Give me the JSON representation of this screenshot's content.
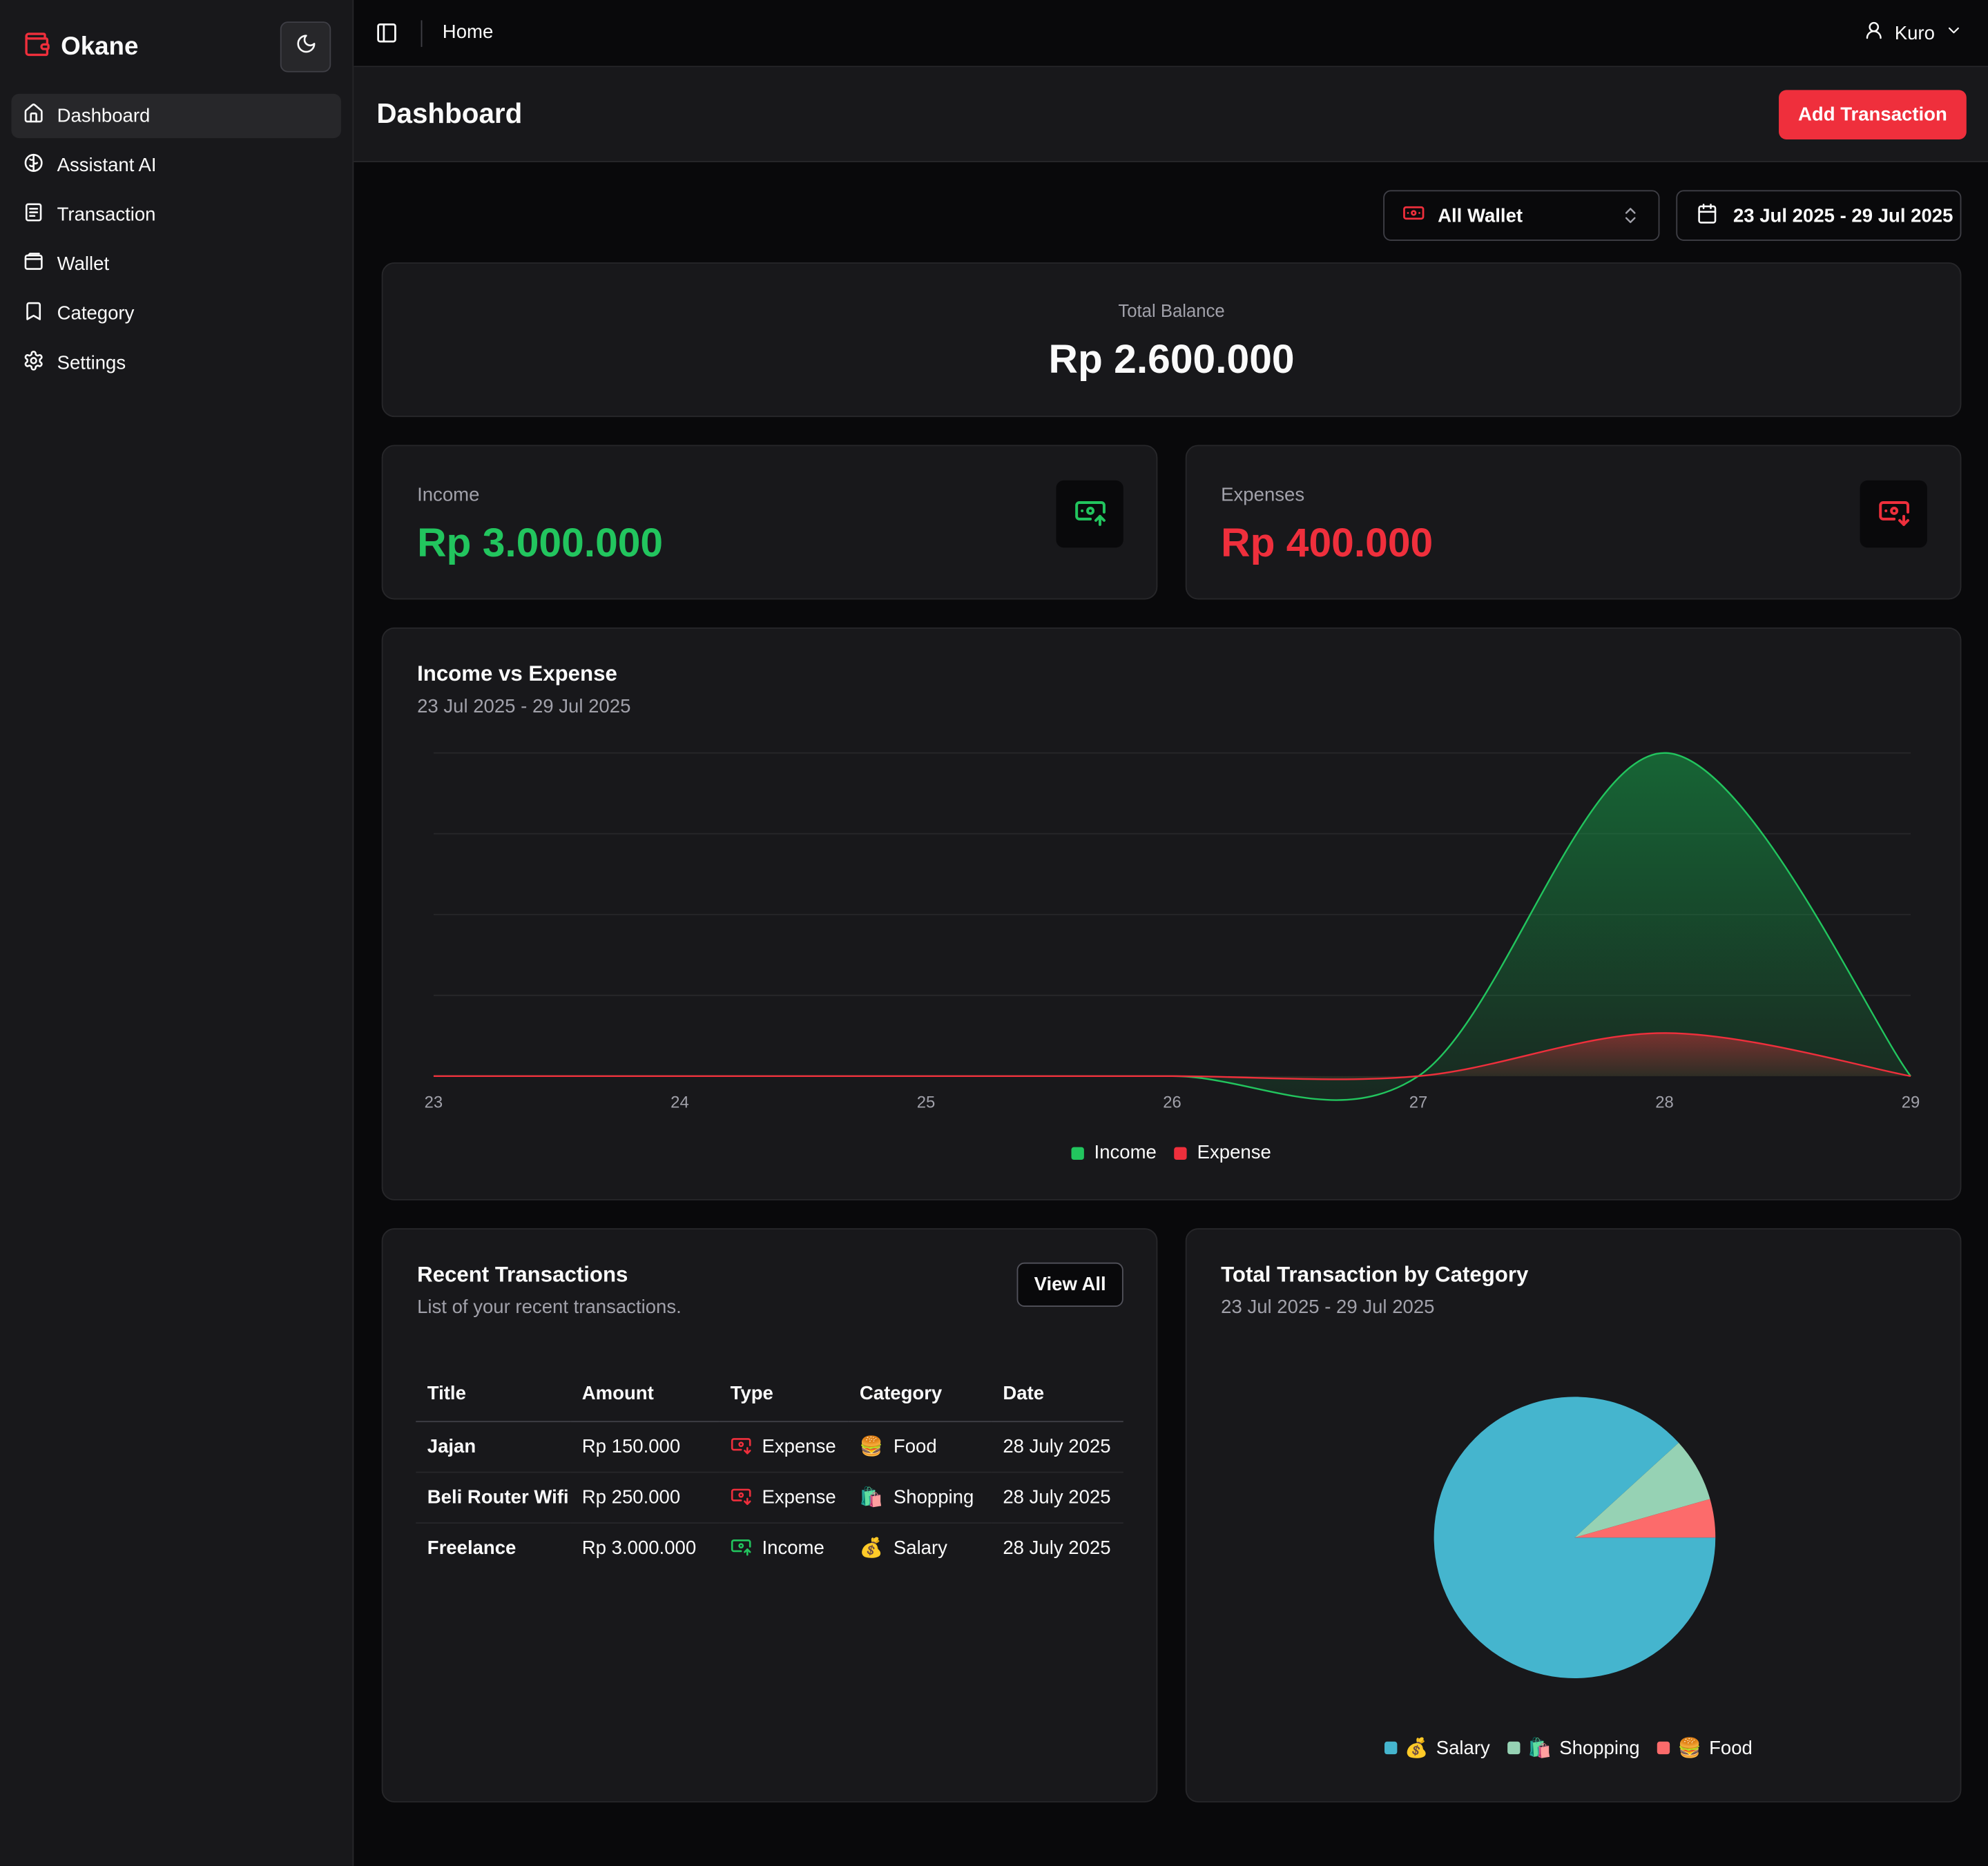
{
  "app": {
    "name": "Okane"
  },
  "sidebar": {
    "items": [
      {
        "label": "Dashboard",
        "icon": "home-icon",
        "active": true
      },
      {
        "label": "Assistant AI",
        "icon": "brain-icon"
      },
      {
        "label": "Transaction",
        "icon": "receipt-icon"
      },
      {
        "label": "Wallet",
        "icon": "wallet-icon"
      },
      {
        "label": "Category",
        "icon": "bookmark-icon"
      },
      {
        "label": "Settings",
        "icon": "gear-icon"
      }
    ]
  },
  "topbar": {
    "breadcrumb": "Home",
    "user": "Kuro"
  },
  "page": {
    "title": "Dashboard",
    "add_button": "Add Transaction"
  },
  "filters": {
    "wallet": "All Wallet",
    "date_range": "23 Jul 2025 - 29 Jul 2025"
  },
  "balance": {
    "label": "Total Balance",
    "value": "Rp 2.600.000"
  },
  "income": {
    "label": "Income",
    "value": "Rp 3.000.000"
  },
  "expenses": {
    "label": "Expenses",
    "value": "Rp 400.000"
  },
  "colors": {
    "accent": "#ef2f3c",
    "income": "#22c55e",
    "expense": "#ef2f3c",
    "salary": "#45b5ce",
    "shopping": "#96d2b4",
    "food": "#fc6b6b"
  },
  "area_chart": {
    "title": "Income vs Expense",
    "subtitle": "23 Jul 2025 - 29 Jul 2025",
    "legend_income": "Income",
    "legend_expense": "Expense"
  },
  "recent": {
    "title": "Recent Transactions",
    "subtitle": "List of your recent transactions.",
    "view_all": "View All",
    "columns": [
      "Title",
      "Amount",
      "Type",
      "Category",
      "Date"
    ],
    "rows": [
      {
        "title": "Jajan",
        "amount": "Rp 150.000",
        "type": "Expense",
        "category_emoji": "🍔",
        "category": "Food",
        "date": "28 July 2025"
      },
      {
        "title": "Beli Router Wifi",
        "amount": "Rp 250.000",
        "type": "Expense",
        "category_emoji": "🛍️",
        "category": "Shopping",
        "date": "28 July 2025"
      },
      {
        "title": "Freelance",
        "amount": "Rp 3.000.000",
        "type": "Income",
        "category_emoji": "💰",
        "category": "Salary",
        "date": "28 July 2025"
      }
    ]
  },
  "category_chart": {
    "title": "Total Transaction by Category",
    "subtitle": "23 Jul 2025 - 29 Jul 2025",
    "legend": [
      {
        "emoji": "💰",
        "label": "Salary"
      },
      {
        "emoji": "🛍️",
        "label": "Shopping"
      },
      {
        "emoji": "🍔",
        "label": "Food"
      }
    ]
  },
  "chart_data": [
    {
      "type": "area",
      "x": [
        "23",
        "24",
        "25",
        "26",
        "27",
        "28",
        "29"
      ],
      "series": [
        {
          "name": "Income",
          "values": [
            0,
            0,
            0,
            0,
            0,
            3000000,
            0
          ]
        },
        {
          "name": "Expense",
          "values": [
            0,
            0,
            0,
            0,
            0,
            400000,
            0
          ]
        }
      ],
      "ylim": [
        0,
        3000000
      ],
      "grid": true,
      "legend": "bottom"
    },
    {
      "type": "pie",
      "categories": [
        "Salary",
        "Shopping",
        "Food"
      ],
      "values": [
        3000000,
        250000,
        150000
      ],
      "legend": "bottom"
    }
  ]
}
